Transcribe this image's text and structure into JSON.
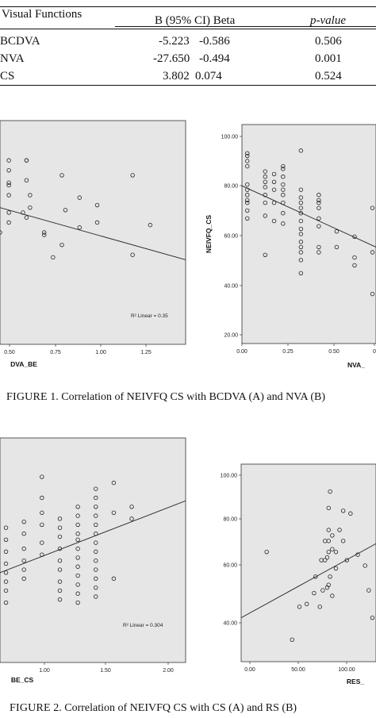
{
  "table": {
    "headers": [
      "Visual Functions",
      "B (95% CI) Beta",
      "p-value"
    ],
    "rows": [
      {
        "label": "BCDVA",
        "b": "-5.223",
        "beta": "-0.586",
        "p": "0.506"
      },
      {
        "label": "NVA",
        "b": "-27.650",
        "beta": "-0.494",
        "p": "0.001"
      },
      {
        "label": "CS",
        "b": "3.802",
        "beta": "0.074",
        "p": "0.524"
      }
    ]
  },
  "figure1": {
    "caption_prefix": "FIGURE",
    "caption_text": " 1. Correlation of NEIVFQ CS with BCDVA (A) and NVA (B)"
  },
  "figure2": {
    "caption_prefix": "FIGURE",
    "caption_text": " 2. Correlation of NEIVFQ CS with CS (A) and RS (B)"
  },
  "chart_data": [
    {
      "type": "scatter",
      "xlabel": "DVA_BE",
      "ylabel": "",
      "x_ticks": [
        "0.50",
        "0.75",
        "1.00",
        "1.25"
      ],
      "xlim": [
        0.45,
        1.5
      ],
      "ylim": [
        15,
        105
      ],
      "fit_line": {
        "x": [
          0.45,
          1.5
        ],
        "y": [
          70,
          49
        ]
      },
      "annotation": "R² Linear = 0.35",
      "points": {
        "x": [
          0.45,
          0.5,
          0.5,
          0.5,
          0.5,
          0.5,
          0.5,
          0.5,
          0.6,
          0.6,
          0.6,
          0.58,
          0.6,
          0.62,
          0.62,
          0.7,
          0.7,
          0.75,
          0.8,
          0.8,
          0.82,
          0.9,
          0.9,
          1.0,
          1.0,
          1.2,
          1.2,
          1.3
        ],
        "y": [
          60,
          64,
          68,
          75,
          79,
          80,
          85,
          89,
          89,
          89,
          81,
          68,
          66,
          75,
          70,
          59,
          60,
          50,
          55,
          83,
          69,
          74,
          62,
          64,
          71,
          83,
          51,
          63
        ]
      }
    },
    {
      "type": "scatter",
      "xlabel": "NVA_",
      "ylabel": "NEIVFQ_CS",
      "x_ticks": [
        "0.00",
        "0.25",
        "0.50",
        "0"
      ],
      "y_ticks": [
        "100.00",
        "80.00",
        "60.00",
        "40.00",
        "20.00"
      ],
      "xlim": [
        -0.03,
        0.72
      ],
      "ylim": [
        18,
        102
      ],
      "fit_line": {
        "x": [
          -0.03,
          0.72
        ],
        "y": [
          78.5,
          55
        ]
      },
      "points": {
        "x": [
          0,
          0,
          0,
          0,
          0,
          0,
          0,
          0,
          0,
          0,
          0,
          0.1,
          0.1,
          0.1,
          0.1,
          0.1,
          0.1,
          0.1,
          0.1,
          0.15,
          0.15,
          0.15,
          0.15,
          0.15,
          0.2,
          0.2,
          0.2,
          0.2,
          0.2,
          0.2,
          0.2,
          0.2,
          0.2,
          0.3,
          0.3,
          0.3,
          0.3,
          0.3,
          0.3,
          0.3,
          0.3,
          0.3,
          0.3,
          0.3,
          0.3,
          0.3,
          0.3,
          0.4,
          0.4,
          0.4,
          0.4,
          0.4,
          0.4,
          0.4,
          0.4,
          0.5,
          0.5,
          0.6,
          0.6,
          0.6,
          0.7,
          0.7,
          0.7
        ],
        "y": [
          90,
          91,
          88,
          86,
          79,
          77,
          75,
          73,
          72,
          69,
          66,
          84,
          82,
          80,
          78,
          75,
          72,
          67,
          52,
          83,
          80,
          77,
          72,
          65,
          86,
          85,
          82,
          79,
          77,
          75,
          72,
          68,
          64,
          92,
          77,
          74,
          72,
          70,
          68,
          65,
          62,
          60,
          57,
          55,
          53,
          50,
          45,
          75,
          73,
          72,
          70,
          66,
          63,
          55,
          53,
          61,
          55,
          59,
          51,
          48,
          70,
          53,
          37
        ]
      }
    },
    {
      "type": "scatter",
      "xlabel": "BE_CS",
      "ylabel": "",
      "x_ticks": [
        "1.00",
        "1.50",
        "2.00"
      ],
      "xlim": [
        0.55,
        2.1
      ],
      "ylim": [
        30,
        105
      ],
      "fit_line": {
        "x": [
          0.55,
          2.1
        ],
        "y": [
          60,
          84
        ]
      },
      "annotation": "R² Linear = 0.304",
      "points": {
        "x": [
          0.6,
          0.6,
          0.6,
          0.6,
          0.6,
          0.6,
          0.6,
          0.6,
          0.75,
          0.75,
          0.75,
          0.75,
          0.75,
          0.75,
          0.9,
          0.9,
          0.9,
          0.9,
          0.9,
          0.9,
          1.05,
          1.05,
          1.05,
          1.05,
          1.05,
          1.05,
          1.05,
          1.05,
          1.05,
          1.2,
          1.2,
          1.2,
          1.2,
          1.2,
          1.2,
          1.2,
          1.2,
          1.2,
          1.2,
          1.2,
          1.2,
          1.35,
          1.35,
          1.35,
          1.35,
          1.35,
          1.35,
          1.35,
          1.35,
          1.35,
          1.35,
          1.35,
          1.35,
          1.35,
          1.5,
          1.5,
          1.5,
          1.65,
          1.65
        ],
        "y": [
          75,
          71,
          67,
          63,
          60,
          57,
          54,
          50,
          77,
          73,
          68,
          64,
          61,
          58,
          92,
          85,
          80,
          76,
          70,
          66,
          78,
          75,
          72,
          68,
          64,
          61,
          57,
          54,
          51,
          82,
          79,
          76,
          73,
          71,
          68,
          65,
          62,
          59,
          56,
          53,
          50,
          88,
          85,
          82,
          79,
          76,
          73,
          70,
          67,
          64,
          61,
          58,
          55,
          52,
          90,
          80,
          58,
          82,
          78
        ]
      }
    },
    {
      "type": "scatter",
      "xlabel": "RES_",
      "ylabel": "",
      "x_ticks": [
        "0.00",
        "50.00",
        "100.00"
      ],
      "y_ticks": [
        "100.00",
        "80.00",
        "60.00",
        "40.00"
      ],
      "xlim": [
        -20,
        165
      ],
      "ylim": [
        30,
        102
      ],
      "fit_line": {
        "x": [
          -20,
          165
        ],
        "y": [
          46,
          73
        ]
      },
      "points": {
        "x": [
          15,
          50,
          60,
          70,
          80,
          82,
          88,
          90,
          92,
          95,
          95,
          98,
          98,
          100,
          100,
          100,
          100,
          100,
          102,
          102,
          105,
          105,
          105,
          110,
          110,
          115,
          120,
          120,
          125,
          130,
          140,
          150,
          155,
          160
        ],
        "y": [
          70,
          38,
          50,
          51,
          55,
          61,
          50,
          67,
          56,
          67,
          74,
          57,
          68,
          58,
          70,
          74,
          78,
          86,
          61,
          92,
          54,
          71,
          76,
          70,
          64,
          78,
          74,
          85,
          67,
          84,
          69,
          65,
          56,
          46
        ]
      }
    }
  ]
}
